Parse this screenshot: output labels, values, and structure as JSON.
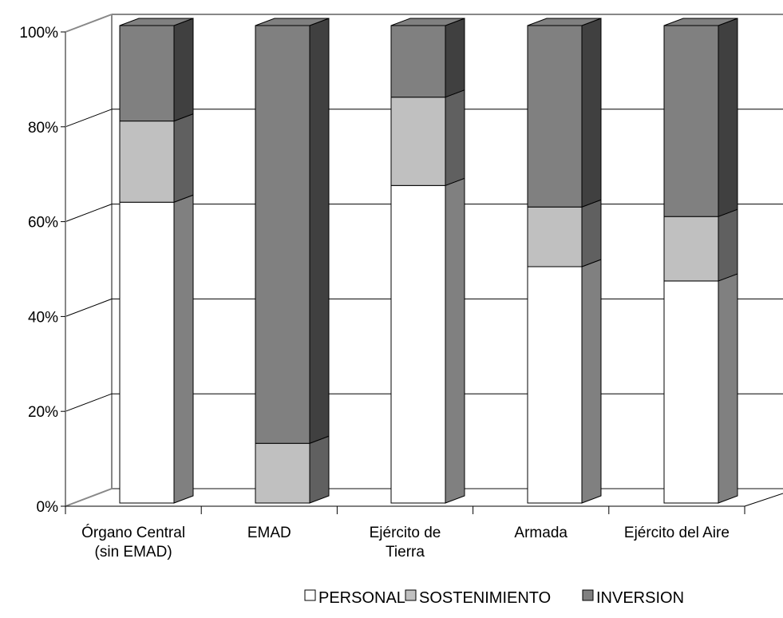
{
  "chart_data": {
    "type": "bar",
    "stacked": true,
    "percent": true,
    "style": "3d",
    "categories": [
      [
        "Órgano Central",
        "(sin EMAD)"
      ],
      [
        "EMAD"
      ],
      [
        "Ejército de",
        "Tierra"
      ],
      [
        "Armada"
      ],
      [
        "Ejército del Aire"
      ]
    ],
    "series": [
      {
        "name": "PERSONAL",
        "color": "#ffffff",
        "values": [
          63,
          0,
          66.5,
          49.5,
          46.5
        ]
      },
      {
        "name": "SOSTENIMIENTO",
        "color": "#c0c0c0",
        "values": [
          17,
          12.5,
          18.5,
          12.5,
          13.5
        ]
      },
      {
        "name": "INVERSION",
        "color": "#808080",
        "values": [
          20,
          87.5,
          15,
          38,
          40
        ]
      }
    ],
    "y_ticks": [
      "0%",
      "20%",
      "40%",
      "60%",
      "80%",
      "100%"
    ],
    "y_tick_values": [
      0,
      20,
      40,
      60,
      80,
      100
    ],
    "ylim": [
      0,
      100
    ],
    "grid": true,
    "legend_position": "bottom"
  }
}
